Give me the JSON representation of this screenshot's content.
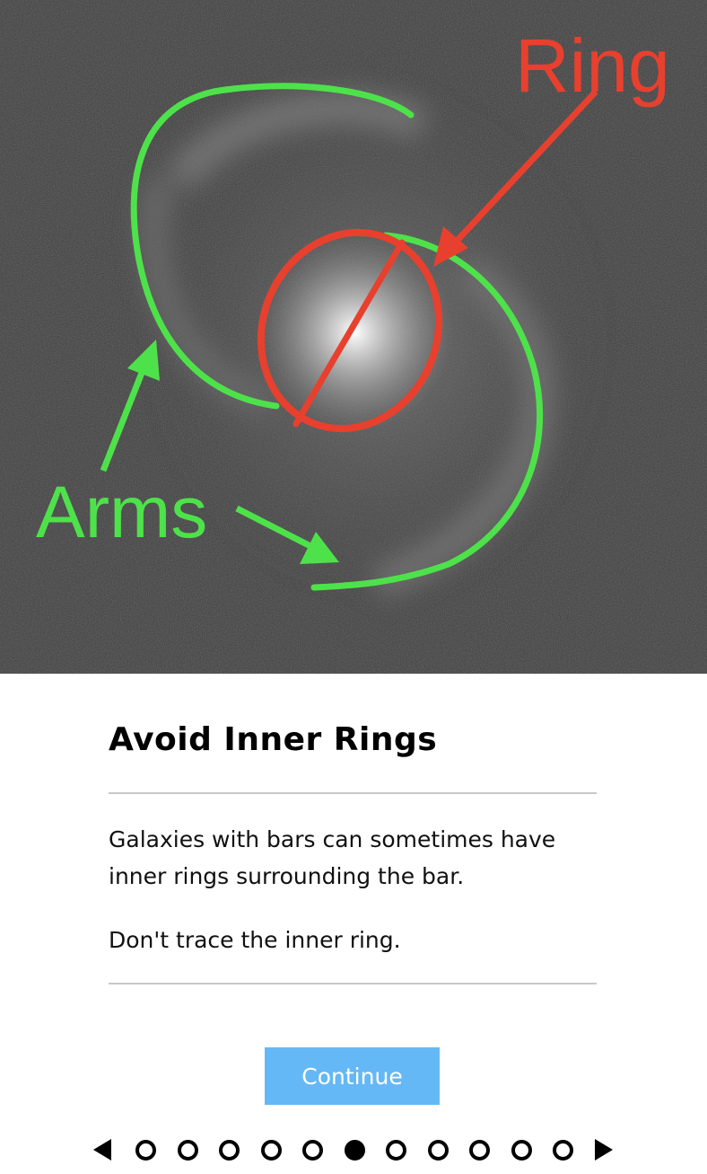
{
  "figure": {
    "ring_label": "Ring",
    "arms_label": "Arms",
    "ring_color": "#e8402e",
    "arms_color": "#4ee24a"
  },
  "content": {
    "title": "Avoid Inner Rings",
    "paragraph_1": "Galaxies with bars can sometimes have inner rings surrounding the bar.",
    "paragraph_2": "Don't trace the inner ring."
  },
  "actions": {
    "continue_label": "Continue"
  },
  "pager": {
    "total_steps": 11,
    "current_step": 6,
    "prev_icon": "triangle-left-icon",
    "next_icon": "triangle-right-icon"
  }
}
